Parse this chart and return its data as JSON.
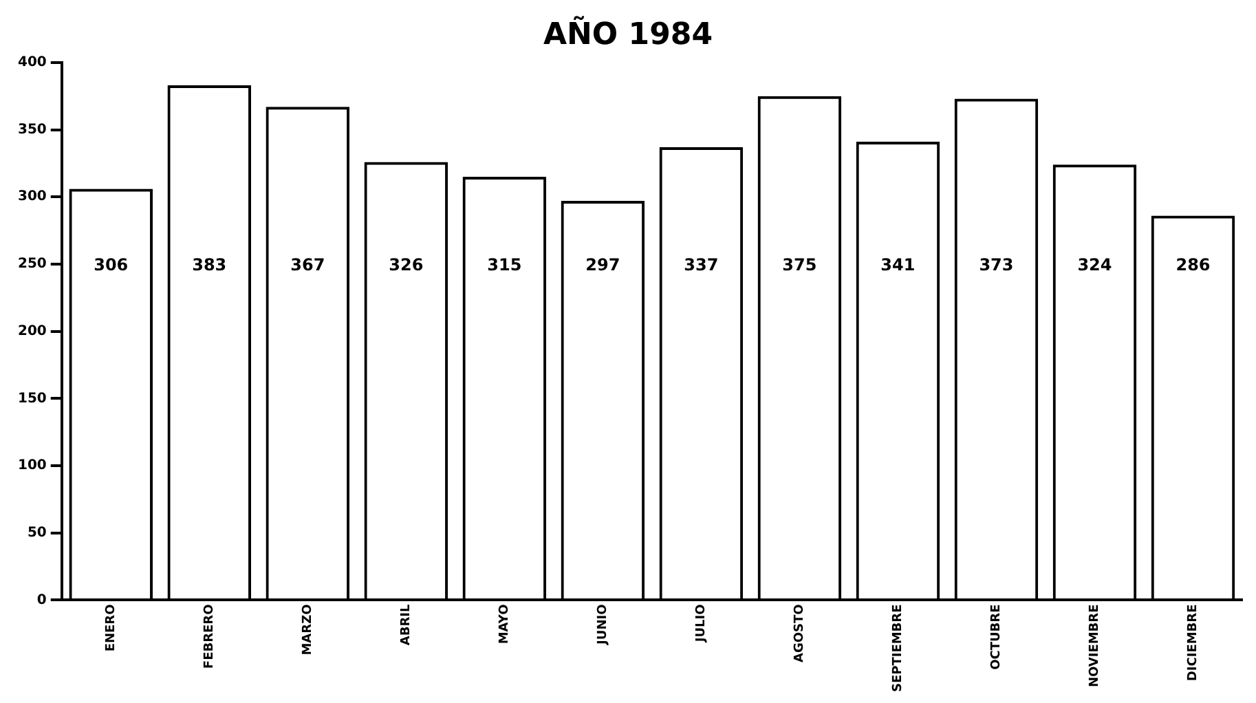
{
  "chart_data": {
    "type": "bar",
    "title": "AÑO 1984",
    "categories": [
      "ENERO",
      "FEBRERO",
      "MARZO",
      "ABRIL",
      "MAYO",
      "JUNIO",
      "JULIO",
      "AGOSTO",
      "SEPTIEMBRE",
      "OCTUBRE",
      "NOVIEMBRE",
      "DICIEMBRE"
    ],
    "values": [
      306,
      383,
      367,
      326,
      315,
      297,
      337,
      375,
      341,
      373,
      324,
      286
    ],
    "color": "#000000",
    "ylim": [
      0,
      400
    ],
    "yticks": [
      0,
      50,
      100,
      150,
      200,
      250,
      300,
      350,
      400
    ],
    "grid": false,
    "legend": false,
    "data_labels": true
  }
}
